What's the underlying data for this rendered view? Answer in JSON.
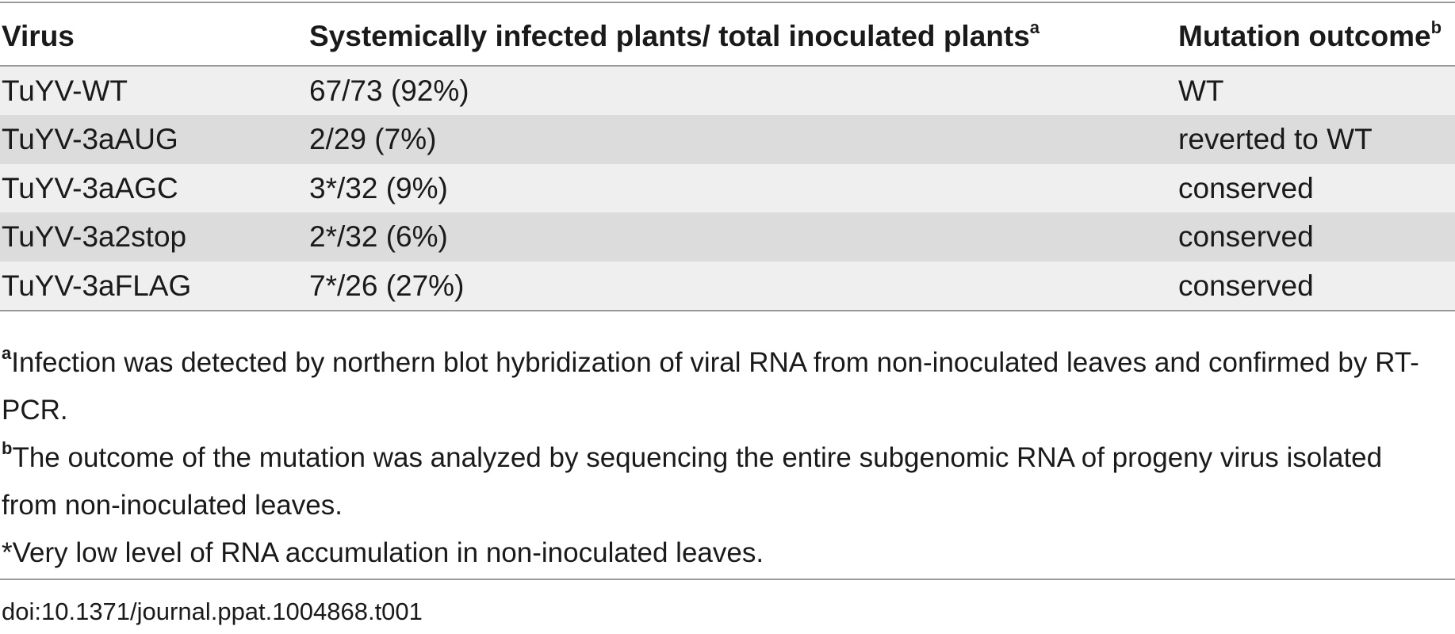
{
  "table": {
    "headers": {
      "virus": "Virus",
      "infected": "Systemically infected plants/ total inoculated plants",
      "infected_sup": "a",
      "mutation": "Mutation outcome",
      "mutation_sup": "b"
    },
    "rows": [
      {
        "virus": "TuYV-WT",
        "infected": "67/73 (92%)",
        "mutation": "WT"
      },
      {
        "virus": "TuYV-3aAUG",
        "infected": "2/29 (7%)",
        "mutation": "reverted to WT"
      },
      {
        "virus": "TuYV-3aAGC",
        "infected": "3*/32 (9%)",
        "mutation": "conserved"
      },
      {
        "virus": "TuYV-3a2stop",
        "infected": "2*/32 (6%)",
        "mutation": "conserved"
      },
      {
        "virus": "TuYV-3aFLAG",
        "infected": "7*/26 (27%)",
        "mutation": "conserved"
      }
    ]
  },
  "footnotes": {
    "a_marker": "a",
    "a_text": "Infection was detected by northern blot hybridization of viral RNA from non-inoculated leaves and confirmed by RT-PCR.",
    "b_marker": "b",
    "b_text": "The outcome of the mutation was analyzed by sequencing the entire subgenomic RNA of progeny virus isolated from non-inoculated leaves.",
    "star_text": "*Very low level of RNA accumulation in non-inoculated leaves."
  },
  "doi": "doi:10.1371/journal.ppat.1004868.t001"
}
